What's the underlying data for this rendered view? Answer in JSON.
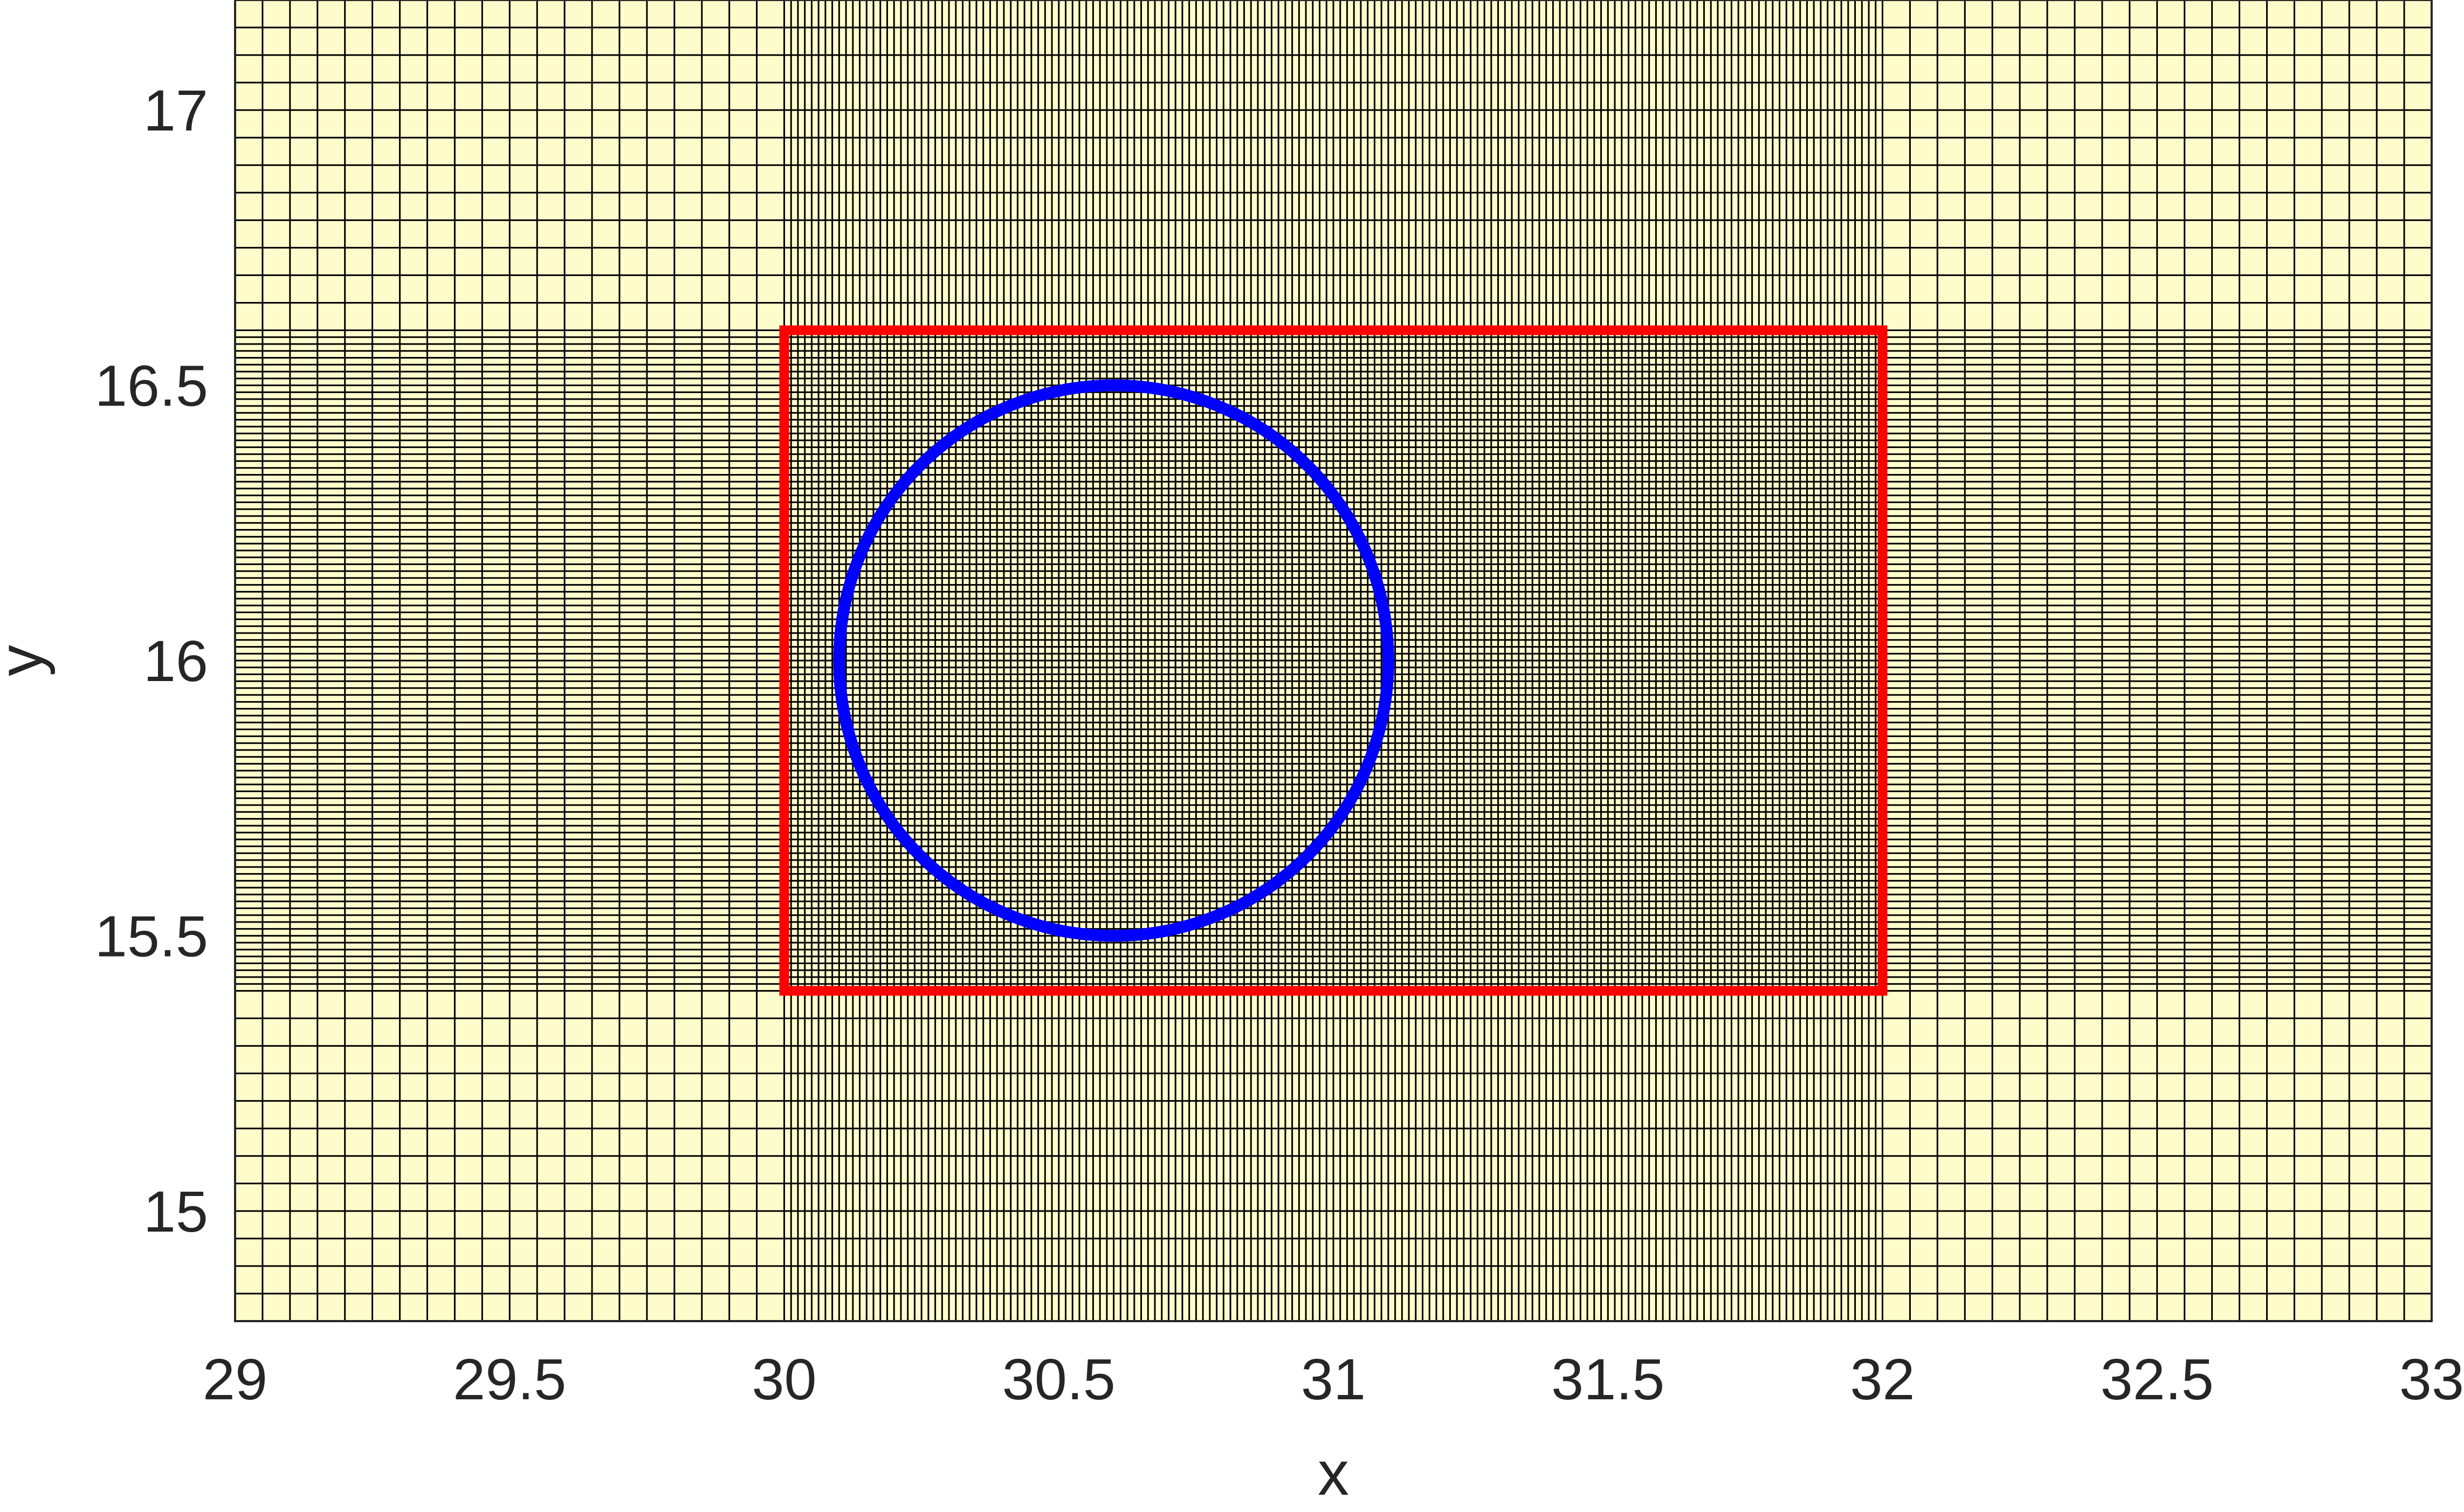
{
  "chart_data": {
    "type": "scatter",
    "xlabel": "x",
    "ylabel": "y",
    "xlim": [
      29,
      33
    ],
    "ylim": [
      14.8,
      17.2
    ],
    "xticks": [
      29,
      29.5,
      30,
      30.5,
      31,
      31.5,
      32,
      32.5,
      33
    ],
    "xtick_labels": [
      "29",
      "29.5",
      "30",
      "30.5",
      "31",
      "31.5",
      "32",
      "32.5",
      "33"
    ],
    "yticks": [
      15,
      15.5,
      16,
      16.5,
      17
    ],
    "ytick_labels": [
      "15",
      "15.5",
      "16",
      "16.5",
      "17"
    ],
    "grid": true,
    "mesh": {
      "description_free": true,
      "x_refined_range": [
        30.0,
        32.0
      ],
      "y_refined_range": [
        15.4,
        16.6
      ],
      "coarse_spacing": 0.05,
      "fine_spacing": 0.0125,
      "fill_color": "#FFFCCC",
      "line_color": "#000000"
    },
    "shapes": [
      {
        "kind": "rectangle",
        "x": [
          30.0,
          32.0
        ],
        "y": [
          15.4,
          16.6
        ],
        "color": "#FF0000"
      },
      {
        "kind": "circle",
        "center": [
          30.6,
          16.0
        ],
        "radius": 0.5,
        "color": "#0000FF"
      }
    ]
  }
}
